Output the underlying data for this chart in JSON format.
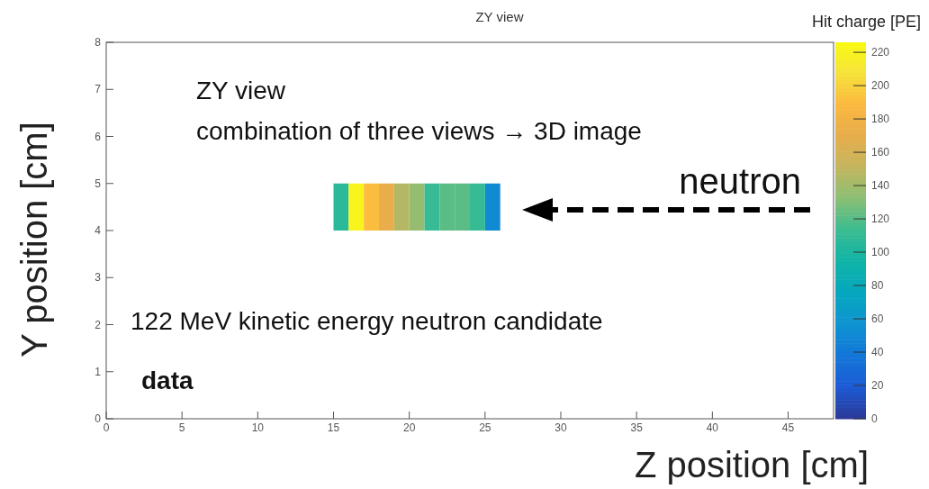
{
  "chart_data": {
    "type": "bar",
    "title": "ZY view",
    "xlabel": "Z position [cm]",
    "ylabel": "Y position [cm]",
    "clabel": "Hit charge [PE]",
    "x": [
      15.5,
      16.5,
      17.5,
      18.5,
      19.5,
      20.5,
      21.5,
      22.5,
      23.5,
      24.5,
      25.5
    ],
    "base": [
      4,
      4,
      4,
      4,
      4,
      4,
      4,
      4,
      4,
      4,
      4
    ],
    "values": [
      1,
      1,
      1,
      1,
      1,
      1,
      1,
      1,
      1,
      1,
      1
    ],
    "cvalues": [
      105,
      220,
      190,
      170,
      145,
      135,
      110,
      120,
      120,
      110,
      50
    ],
    "xlim": [
      0,
      48
    ],
    "xticks": [
      0,
      5,
      10,
      15,
      20,
      25,
      30,
      35,
      40,
      45
    ],
    "ylim": [
      0,
      8
    ],
    "yticks": [
      0,
      1,
      2,
      3,
      4,
      5,
      6,
      7,
      8
    ],
    "clim": [
      0,
      226
    ],
    "cticks": [
      0,
      20,
      40,
      60,
      80,
      100,
      120,
      140,
      160,
      180,
      200,
      220
    ],
    "annotations": [
      "ZY view",
      "combination of three views → 3D image",
      "neutron",
      "122 MeV kinetic energy neutron candidate",
      "data"
    ]
  }
}
